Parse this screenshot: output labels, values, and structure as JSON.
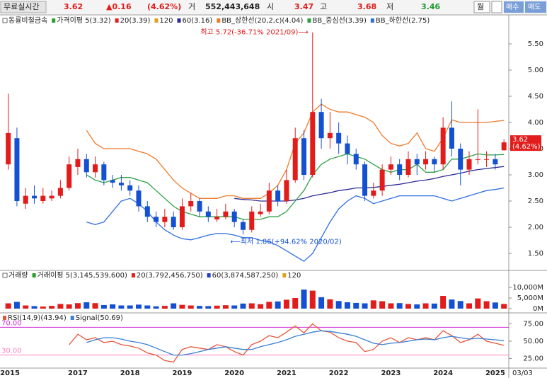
{
  "toolbar": {
    "label": "무료실시간",
    "price": "3.62",
    "change": "▲0.16",
    "rate": "(4.62%)",
    "volume_label": "거",
    "volume": "552,443,648",
    "open_label": "시",
    "open": "3.47",
    "high_label": "고",
    "high": "3.68",
    "low_label": "저",
    "low": "3.46",
    "period": "월",
    "buy": "매수",
    "sell": "매도"
  },
  "chart_data": [
    {
      "type": "candlestick",
      "title": "동륭비철금속",
      "legend_extra": [
        {
          "name": "가격이평 5(3.32)",
          "color": "#28a028"
        },
        {
          "name": "20(3.39)",
          "color": "#e02020"
        },
        {
          "name": "120",
          "color": "#e0a020"
        }
      ],
      "up_color": "#e21b1b",
      "down_color": "#1450d2",
      "open": [
        3.2,
        3.7,
        2.45,
        2.6,
        2.5,
        2.55,
        2.6,
        2.75,
        3.15,
        3.3,
        3.05,
        3.2,
        2.9,
        2.85,
        2.8,
        2.7,
        2.4,
        2.2,
        2.1,
        2.2,
        2.0,
        2.4,
        2.5,
        2.3,
        2.15,
        2.2,
        2.3,
        2.1,
        1.95,
        2.25,
        2.3,
        2.7,
        2.5,
        2.9,
        3.7,
        3.0,
        4.2,
        3.7,
        3.8,
        3.6,
        3.4,
        3.2,
        2.6,
        2.7,
        3.1,
        3.2,
        3.0,
        3.3,
        3.2,
        3.3,
        3.2,
        3.9,
        3.5,
        3.1,
        3.3,
        3.3,
        3.3,
        3.47
      ],
      "high": [
        4.55,
        3.9,
        2.75,
        2.8,
        2.75,
        2.7,
        2.9,
        3.35,
        3.5,
        3.4,
        3.35,
        3.25,
        3.0,
        3.0,
        2.9,
        2.8,
        2.5,
        2.3,
        2.35,
        2.3,
        2.55,
        2.65,
        2.55,
        2.4,
        2.35,
        2.45,
        2.35,
        2.15,
        2.4,
        2.45,
        2.85,
        2.8,
        3.1,
        3.9,
        3.85,
        5.72,
        4.45,
        4.2,
        4.0,
        3.75,
        3.5,
        3.25,
        2.85,
        3.2,
        3.35,
        3.3,
        3.45,
        3.4,
        3.45,
        3.35,
        4.1,
        4.4,
        3.6,
        3.45,
        4.25,
        3.45,
        3.4,
        3.68
      ],
      "low": [
        3.1,
        2.4,
        2.35,
        2.45,
        2.45,
        2.5,
        2.55,
        2.7,
        3.0,
        2.95,
        2.95,
        2.8,
        2.75,
        2.7,
        2.6,
        2.3,
        2.1,
        2.0,
        2.0,
        1.95,
        1.95,
        2.3,
        2.2,
        2.1,
        2.1,
        2.15,
        2.0,
        1.86,
        1.9,
        2.2,
        2.25,
        2.4,
        2.45,
        2.85,
        2.9,
        2.95,
        3.5,
        3.5,
        3.4,
        3.2,
        3.1,
        2.5,
        2.55,
        2.6,
        3.0,
        2.9,
        2.95,
        3.0,
        3.1,
        3.05,
        3.1,
        3.35,
        2.8,
        3.0,
        3.2,
        3.15,
        3.1,
        3.46
      ],
      "close": [
        3.8,
        2.5,
        2.6,
        2.55,
        2.6,
        2.6,
        2.75,
        3.2,
        3.3,
        3.05,
        3.2,
        2.9,
        2.85,
        2.8,
        2.7,
        2.4,
        2.2,
        2.1,
        2.2,
        2.0,
        2.4,
        2.5,
        2.3,
        2.2,
        2.2,
        2.3,
        2.1,
        1.95,
        2.3,
        2.3,
        2.7,
        2.5,
        2.9,
        3.7,
        3.0,
        4.2,
        3.7,
        3.8,
        3.6,
        3.4,
        3.2,
        2.6,
        2.7,
        3.1,
        3.2,
        3.0,
        3.3,
        3.2,
        3.3,
        3.2,
        3.9,
        3.5,
        3.1,
        3.3,
        3.3,
        3.3,
        3.2,
        3.62
      ],
      "series": [
        {
          "name": "60(3.16)",
          "color": "#2c2c9a",
          "values": [
            null,
            null,
            null,
            null,
            null,
            null,
            null,
            null,
            null,
            null,
            null,
            null,
            null,
            null,
            null,
            null,
            null,
            null,
            null,
            null,
            null,
            null,
            null,
            null,
            null,
            null,
            2.55,
            2.53,
            2.52,
            2.5,
            2.5,
            2.5,
            2.5,
            2.52,
            2.55,
            2.6,
            2.63,
            2.66,
            2.7,
            2.72,
            2.75,
            2.75,
            2.76,
            2.78,
            2.8,
            2.82,
            2.85,
            2.88,
            2.9,
            2.93,
            2.97,
            3.0,
            3.03,
            3.07,
            3.1,
            3.12,
            3.14,
            3.16
          ]
        },
        {
          "name": "BB_상한선(20,2,c)(4.04)",
          "color": "#f07a2a",
          "values": [
            null,
            null,
            null,
            null,
            null,
            null,
            null,
            null,
            null,
            3.85,
            3.6,
            3.5,
            3.5,
            3.5,
            3.5,
            3.45,
            3.4,
            3.3,
            3.1,
            2.9,
            2.75,
            2.65,
            2.55,
            2.55,
            2.55,
            2.6,
            2.6,
            2.55,
            2.55,
            2.55,
            2.65,
            2.8,
            3.1,
            3.6,
            3.8,
            4.2,
            4.35,
            4.25,
            4.2,
            4.2,
            4.15,
            4.1,
            4.0,
            3.75,
            3.6,
            3.55,
            3.6,
            3.8,
            3.5,
            3.45,
            3.7,
            4.05,
            4.0,
            4.0,
            4.0,
            4.0,
            4.02,
            4.04
          ]
        },
        {
          "name": "BB_중심선(3.39)",
          "color": "#2ea043",
          "values": [
            null,
            null,
            null,
            null,
            null,
            null,
            null,
            null,
            null,
            3.0,
            2.9,
            2.85,
            2.9,
            2.95,
            2.95,
            2.9,
            2.85,
            2.7,
            2.55,
            2.4,
            2.3,
            2.25,
            2.2,
            2.2,
            2.2,
            2.2,
            2.2,
            2.15,
            2.15,
            2.15,
            2.2,
            2.2,
            2.3,
            2.5,
            2.7,
            3.0,
            3.2,
            3.3,
            3.35,
            3.4,
            3.35,
            3.3,
            3.2,
            3.1,
            3.05,
            3.1,
            3.1,
            3.2,
            3.05,
            3.05,
            3.1,
            3.3,
            3.3,
            3.35,
            3.4,
            3.38,
            3.38,
            3.39
          ]
        },
        {
          "name": "BB_하한선(2.75)",
          "color": "#2f6fe0",
          "values": [
            null,
            null,
            null,
            null,
            null,
            null,
            null,
            null,
            null,
            2.1,
            2.05,
            2.1,
            2.3,
            2.5,
            2.55,
            2.45,
            2.3,
            2.1,
            1.95,
            1.85,
            1.78,
            1.76,
            1.8,
            1.85,
            1.88,
            1.88,
            1.85,
            1.8,
            1.8,
            1.75,
            1.72,
            1.65,
            1.55,
            1.45,
            1.35,
            1.5,
            1.8,
            2.1,
            2.35,
            2.5,
            2.6,
            2.55,
            2.45,
            2.5,
            2.55,
            2.6,
            2.6,
            2.6,
            2.6,
            2.6,
            2.55,
            2.5,
            2.55,
            2.6,
            2.65,
            2.7,
            2.72,
            2.75
          ]
        }
      ],
      "annotations": [
        {
          "text": "최고 5.72(-36.71% 2021/09)⟶",
          "index": 35,
          "value": 5.72
        },
        {
          "text": "⟵최저 1.86(+94.62% 2020/02)",
          "index": 27,
          "value": 1.86
        }
      ],
      "last_label": [
        "3.62",
        "(4.62%)"
      ],
      "ylim": [
        1.23,
        5.865
      ],
      "yticks": [
        {
          "value": 1.5,
          "label": "1.50"
        },
        {
          "value": 2,
          "label": "2.00"
        },
        {
          "value": 2.5,
          "label": "2.50"
        },
        {
          "value": 3,
          "label": "3.00"
        },
        {
          "value": 3.5,
          "label": "3.50"
        },
        {
          "value": 4,
          "label": "4.00"
        },
        {
          "value": 4.5,
          "label": "4.50"
        },
        {
          "value": 5,
          "label": "5.00"
        },
        {
          "value": 5.5,
          "label": "5.50"
        }
      ]
    },
    {
      "type": "bar",
      "title": "거래량",
      "legend_extra": [
        {
          "name": "거래이평 5(3,145,539,600)",
          "color": "#28a028"
        },
        {
          "name": "20(3,792,456,750)",
          "color": "#e02020"
        },
        {
          "name": "60(3,874,587,250)",
          "color": "#2040c0"
        },
        {
          "name": "120",
          "color": "#e0a020"
        }
      ],
      "values": [
        2500,
        3200,
        1500,
        1200,
        1000,
        1300,
        2200,
        2000,
        2600,
        3000,
        2600,
        1700,
        2000,
        1500,
        1500,
        1900,
        1500,
        1100,
        1300,
        2500,
        1800,
        1500,
        1300,
        1200,
        1400,
        1600,
        1500,
        2400,
        2500,
        2100,
        3200,
        3400,
        4200,
        5000,
        9000,
        8500,
        5400,
        4400,
        3600,
        3000,
        2700,
        2500,
        3900,
        3500,
        2500,
        2600,
        2200,
        2000,
        2500,
        2400,
        6000,
        4300,
        3600,
        2500,
        4800,
        3500,
        2900,
        2200
      ],
      "ylim": [
        0,
        13700
      ],
      "yticks": [
        {
          "value": 0,
          "label": "0M"
        },
        {
          "value": 5000,
          "label": "5,000M"
        },
        {
          "value": 10000,
          "label": "10,000M"
        }
      ]
    },
    {
      "type": "line",
      "series": [
        {
          "name": "RSI(14,9)(43.94)",
          "color": "#e8553a",
          "values": [
            null,
            null,
            null,
            null,
            null,
            null,
            null,
            45,
            60,
            52,
            55,
            48,
            50,
            45,
            43,
            40,
            33,
            30,
            22,
            20,
            38,
            42,
            40,
            38,
            45,
            42,
            35,
            30,
            45,
            50,
            58,
            55,
            63,
            72,
            62,
            75,
            65,
            63,
            55,
            50,
            48,
            35,
            38,
            50,
            55,
            48,
            55,
            52,
            55,
            52,
            65,
            58,
            48,
            52,
            60,
            50,
            47,
            43.94
          ]
        },
        {
          "name": "Signal(50.69)",
          "color": "#3a7fd5",
          "values": [
            null,
            null,
            null,
            null,
            null,
            null,
            null,
            null,
            null,
            48,
            52,
            55,
            55,
            53,
            50,
            48,
            45,
            40,
            35,
            30,
            30,
            32,
            35,
            38,
            40,
            42,
            40,
            38,
            38,
            42,
            45,
            48,
            52,
            57,
            60,
            63,
            65,
            64,
            62,
            60,
            57,
            52,
            47,
            45,
            47,
            48,
            50,
            52,
            53,
            52,
            55,
            57,
            55,
            53,
            54,
            53,
            52,
            50.69
          ]
        }
      ],
      "levels": [
        {
          "value": 70,
          "label": "70.00",
          "color": "#d42fd4"
        },
        {
          "value": 30,
          "label": "30.00",
          "color": "#ff7fc0"
        }
      ],
      "ylim": [
        12.2,
        86.7
      ],
      "yticks": [
        {
          "value": 25,
          "label": "25.00"
        },
        {
          "value": 50,
          "label": "50.00"
        },
        {
          "value": 75,
          "label": "75.00"
        }
      ],
      "categories": [
        "2015",
        null,
        null,
        null,
        null,
        null,
        null,
        null,
        "2017",
        null,
        null,
        null,
        null,
        null,
        "2018",
        null,
        null,
        null,
        null,
        null,
        "2019",
        null,
        null,
        null,
        null,
        null,
        "2020",
        null,
        null,
        null,
        null,
        null,
        "2021",
        null,
        null,
        null,
        null,
        null,
        "2022",
        null,
        null,
        null,
        null,
        null,
        "2023",
        null,
        null,
        null,
        null,
        null,
        "2024",
        null,
        null,
        null,
        null,
        null,
        "2025",
        null
      ],
      "date_label": "03/03"
    }
  ]
}
